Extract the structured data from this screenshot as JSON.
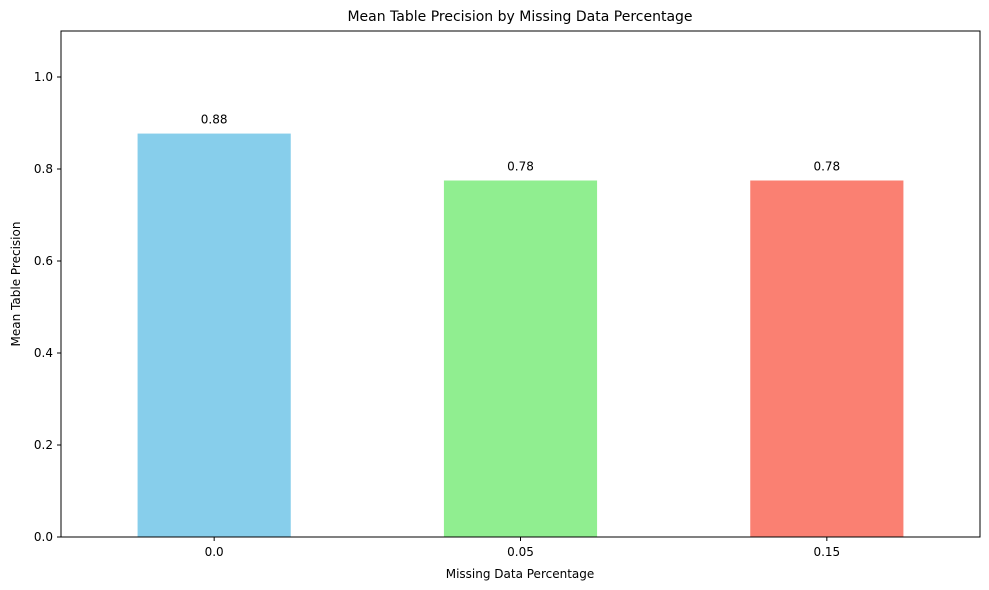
{
  "chart_data": {
    "type": "bar",
    "title": "Mean Table Precision by Missing Data Percentage",
    "xlabel": "Missing Data Percentage",
    "ylabel": "Mean Table Precision",
    "categories": [
      "0.0",
      "0.05",
      "0.15"
    ],
    "values": [
      0.877,
      0.775,
      0.775
    ],
    "data_labels": [
      "0.88",
      "0.78",
      "0.78"
    ],
    "colors": [
      "#87CEEB",
      "#90EE90",
      "#FA8072"
    ],
    "ylim": [
      0,
      1.1
    ],
    "yticks": [
      0.0,
      0.2,
      0.4,
      0.6,
      0.8,
      1.0
    ],
    "ytick_labels": [
      "0.0",
      "0.2",
      "0.4",
      "0.6",
      "0.8",
      "1.0"
    ],
    "grid": false,
    "legend": "none"
  }
}
